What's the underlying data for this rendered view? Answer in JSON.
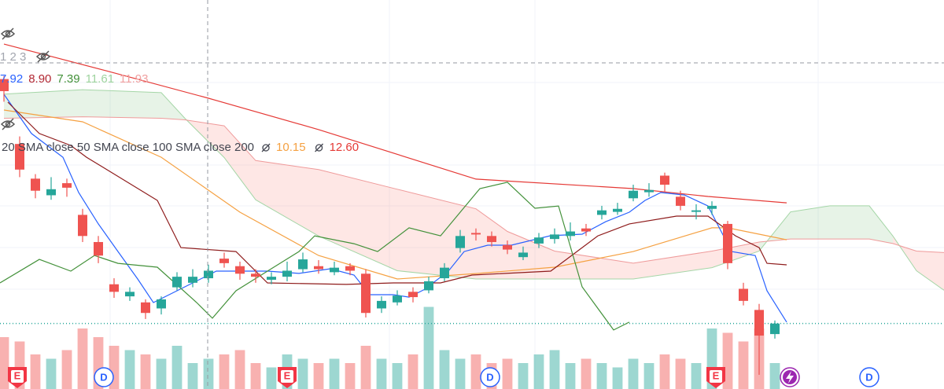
{
  "chart_data": {
    "type": "candlestick",
    "xlim": [
      -0.25,
      59.75
    ],
    "ylim": [
      0.26,
      26.04
    ],
    "up_color": "#26a69a",
    "down_color": "#ef5350",
    "candles": {
      "open": [
        20.8,
        16.5,
        14.2,
        13.1,
        13.9,
        11.8,
        10.0,
        7.2,
        6.4,
        6.0,
        5.6,
        7.0,
        7.3,
        7.6,
        8.9,
        8.4,
        7.9,
        7.5,
        7.7,
        8.2,
        8.4,
        8.0,
        8.4,
        7.9,
        5.6,
        6.0,
        6.7,
        6.8,
        7.6,
        9.6,
        10.6,
        10.4,
        9.8,
        9.0,
        9.9,
        10.2,
        10.4,
        10.9,
        11.8,
        12.0,
        12.9,
        13.3,
        14.4,
        13.0,
        12.0,
        12.2,
        11.2,
        6.9,
        5.5,
        3.9
      ],
      "high": [
        21.0,
        17.0,
        14.5,
        14.3,
        14.2,
        12.2,
        10.4,
        7.6,
        7.0,
        6.2,
        6.4,
        8.0,
        8.2,
        8.5,
        9.3,
        8.7,
        8.2,
        8.0,
        8.7,
        9.3,
        8.8,
        8.7,
        8.6,
        8.2,
        6.4,
        6.8,
        7.0,
        7.7,
        8.6,
        10.8,
        10.9,
        10.7,
        10.1,
        9.7,
        10.6,
        10.9,
        11.3,
        11.2,
        12.4,
        12.6,
        13.8,
        13.9,
        14.6,
        13.4,
        12.5,
        12.7,
        11.4,
        7.3,
        5.9,
        4.8
      ],
      "low": [
        19.3,
        14.3,
        12.9,
        12.8,
        13.0,
        10.0,
        8.6,
        6.3,
        6.1,
        4.9,
        5.2,
        6.8,
        7.0,
        7.3,
        8.3,
        7.5,
        7.3,
        7.2,
        7.4,
        8.0,
        7.9,
        7.8,
        7.8,
        5.0,
        5.3,
        5.8,
        6.0,
        6.6,
        7.4,
        9.3,
        10.1,
        9.7,
        9.2,
        8.8,
        9.6,
        9.9,
        10.1,
        10.4,
        11.5,
        11.8,
        12.7,
        13.0,
        13.3,
        12.1,
        11.5,
        11.8,
        8.2,
        5.8,
        1.2,
        3.6
      ],
      "close": [
        20.0,
        14.8,
        13.4,
        13.5,
        13.6,
        10.4,
        9.1,
        6.7,
        6.7,
        5.3,
        6.2,
        7.7,
        7.7,
        8.1,
        8.6,
        7.9,
        7.7,
        7.7,
        8.1,
        8.85,
        8.2,
        8.3,
        8.1,
        5.3,
        6.1,
        6.45,
        6.35,
        7.4,
        8.3,
        10.4,
        10.5,
        10.0,
        9.5,
        9.3,
        10.3,
        10.5,
        10.7,
        10.7,
        12.1,
        12.2,
        13.4,
        13.45,
        13.8,
        12.4,
        12.1,
        12.4,
        8.6,
        6.1,
        3.8,
        4.6
      ]
    },
    "volumes": [
      60,
      55,
      40,
      35,
      45,
      70,
      60,
      50,
      45,
      40,
      35,
      50,
      30,
      35,
      40,
      45,
      30,
      25,
      40,
      35,
      30,
      35,
      30,
      50,
      35,
      30,
      40,
      95,
      45,
      35,
      40,
      30,
      35,
      30,
      40,
      45,
      30,
      35,
      30,
      25,
      35,
      30,
      40,
      35,
      30,
      70,
      65,
      55,
      70,
      30
    ],
    "volume_lim": [
      0,
      100
    ],
    "last_price": 4.6,
    "last_price_color": "#26a69a",
    "cloud": {
      "x": [
        0,
        5,
        10,
        11.5,
        14,
        16,
        20,
        25,
        30,
        32,
        35,
        40,
        45,
        48,
        50,
        52.5,
        55,
        56.5,
        58,
        59.75
      ],
      "span_a": [
        19.8,
        20.1,
        19.9,
        18.2,
        15.6,
        12.8,
        10.4,
        8.1,
        7.55,
        7.55,
        7.55,
        7.55,
        8.3,
        9.4,
        12.0,
        12.4,
        12.4,
        10.4,
        8.1,
        6.8
      ],
      "span_b": [
        18.2,
        18.3,
        18.2,
        18.1,
        17.7,
        15.4,
        14.8,
        13.5,
        12.2,
        10.7,
        9.4,
        8.6,
        9.4,
        10.0,
        10.2,
        10.2,
        10.2,
        9.9,
        9.4,
        9.3
      ],
      "span_a_color": "#a5d6a7",
      "span_b_color": "#ef9a9a",
      "up_fill": "rgba(67,160,71,0.13)",
      "down_fill": "rgba(244,67,54,0.13)"
    },
    "series": [
      {
        "color": "#e53935",
        "x": [
          0,
          6.5,
          13,
          20,
          30,
          40,
          44.75,
          49.75
        ],
        "values": [
          23.12,
          21.35,
          19.53,
          17.45,
          14.17,
          13.54,
          13.02,
          12.6
        ]
      },
      {
        "color": "#f5a142",
        "x": [
          0,
          5,
          10,
          15,
          20,
          25,
          30,
          35,
          40,
          45,
          46,
          49.75
        ],
        "values": [
          18.75,
          17.97,
          15.62,
          11.98,
          9.11,
          7.55,
          7.91,
          8.33,
          9.37,
          10.94,
          10.94,
          10.15
        ]
      },
      {
        "color": "#2962ff",
        "x": [
          0,
          1.75,
          3.75,
          4.75,
          6,
          7.25,
          8.5,
          9.5,
          10.5,
          12,
          13.5,
          16.75,
          18.75,
          20.75,
          22.25,
          23.25,
          24.75,
          25.75,
          26.75,
          28.25,
          29.25,
          30.75,
          32.25,
          34.75,
          36.75,
          38.25,
          39.75,
          40.75,
          41.75,
          43.25,
          44.75,
          46.25,
          47.75,
          48.5,
          49.75
        ],
        "values": [
          19.79,
          17.19,
          15.62,
          13.28,
          11.2,
          9.37,
          7.55,
          5.99,
          6.51,
          7.29,
          8.07,
          8.07,
          7.92,
          8.23,
          7.81,
          6.51,
          6.51,
          6.35,
          6.87,
          8.07,
          9.37,
          9.79,
          9.79,
          10.42,
          10.52,
          11.35,
          11.98,
          12.76,
          13.28,
          13.12,
          12.39,
          9.37,
          9.11,
          6.77,
          4.69
        ]
      },
      {
        "color": "#8e1b1b",
        "x": [
          0.25,
          2.25,
          4.25,
          5.25,
          9.75,
          11.25,
          14.75,
          16.75,
          21.75,
          24.75,
          27.75,
          29.75,
          34.75,
          35.75,
          37.75,
          39.75,
          42.75,
          44.75,
          46.5,
          48,
          48.5,
          49.75
        ],
        "values": [
          19.27,
          17.19,
          16.4,
          15.62,
          12.76,
          9.63,
          9.37,
          7.29,
          7.19,
          7.29,
          7.29,
          7.81,
          8.07,
          8.85,
          10.41,
          11.2,
          11.72,
          11.72,
          10.41,
          9.63,
          8.59,
          8.49
        ]
      },
      {
        "color": "#43913a",
        "x": [
          -0.25,
          2.25,
          4.25,
          5.75,
          7.25,
          9.75,
          12.25,
          13.25,
          14.75,
          16.75,
          18.75,
          19.75,
          22.25,
          23.75,
          25.75,
          27.75,
          30.25,
          32,
          33.75,
          35.25,
          36.75,
          38.75,
          39.75
        ],
        "values": [
          7.29,
          8.85,
          8.07,
          9.11,
          8.59,
          8.33,
          5.99,
          4.95,
          6.77,
          8.07,
          9.37,
          10.41,
          9.89,
          9.37,
          10.94,
          10.41,
          13.54,
          13.96,
          12.24,
          12.39,
          7.03,
          4.17,
          4.69
        ]
      }
    ],
    "events": [
      {
        "label": "E",
        "x": 0.85,
        "color": "#f23645",
        "fill": "#f23645"
      },
      {
        "label": "D",
        "x": 6.35,
        "color": "#2962ff",
        "fill": "#ffffff"
      },
      {
        "label": "E",
        "x": 18.0,
        "color": "#f23645",
        "fill": "#f23645"
      },
      {
        "label": "D",
        "x": 30.9,
        "color": "#2962ff",
        "fill": "#ffffff"
      },
      {
        "label": "E",
        "x": 45.25,
        "color": "#f23645",
        "fill": "#f23645"
      },
      {
        "label": "D",
        "x": 55.0,
        "color": "#2962ff",
        "fill": "#ffffff"
      }
    ],
    "legend": {
      "ichimoku_label": "1 2 3",
      "ichimoku_values": [
        {
          "value": 7.92,
          "color": "#2962ff"
        },
        {
          "value": 8.9,
          "label": "8.90",
          "color": "#b22833"
        },
        {
          "value": 7.39,
          "color": "#43913a"
        },
        {
          "value": 11.61,
          "color": "#9fd49f"
        },
        {
          "value": 11.93,
          "color": "#f0a0a0"
        }
      ],
      "sma_label": "20 SMA close 50 SMA close 100 SMA close 200",
      "sma_values": [
        {
          "value": 10.15,
          "color": "#f5a142"
        },
        {
          "value": 12.6,
          "label": "12.60",
          "color": "#e53935"
        }
      ]
    }
  }
}
